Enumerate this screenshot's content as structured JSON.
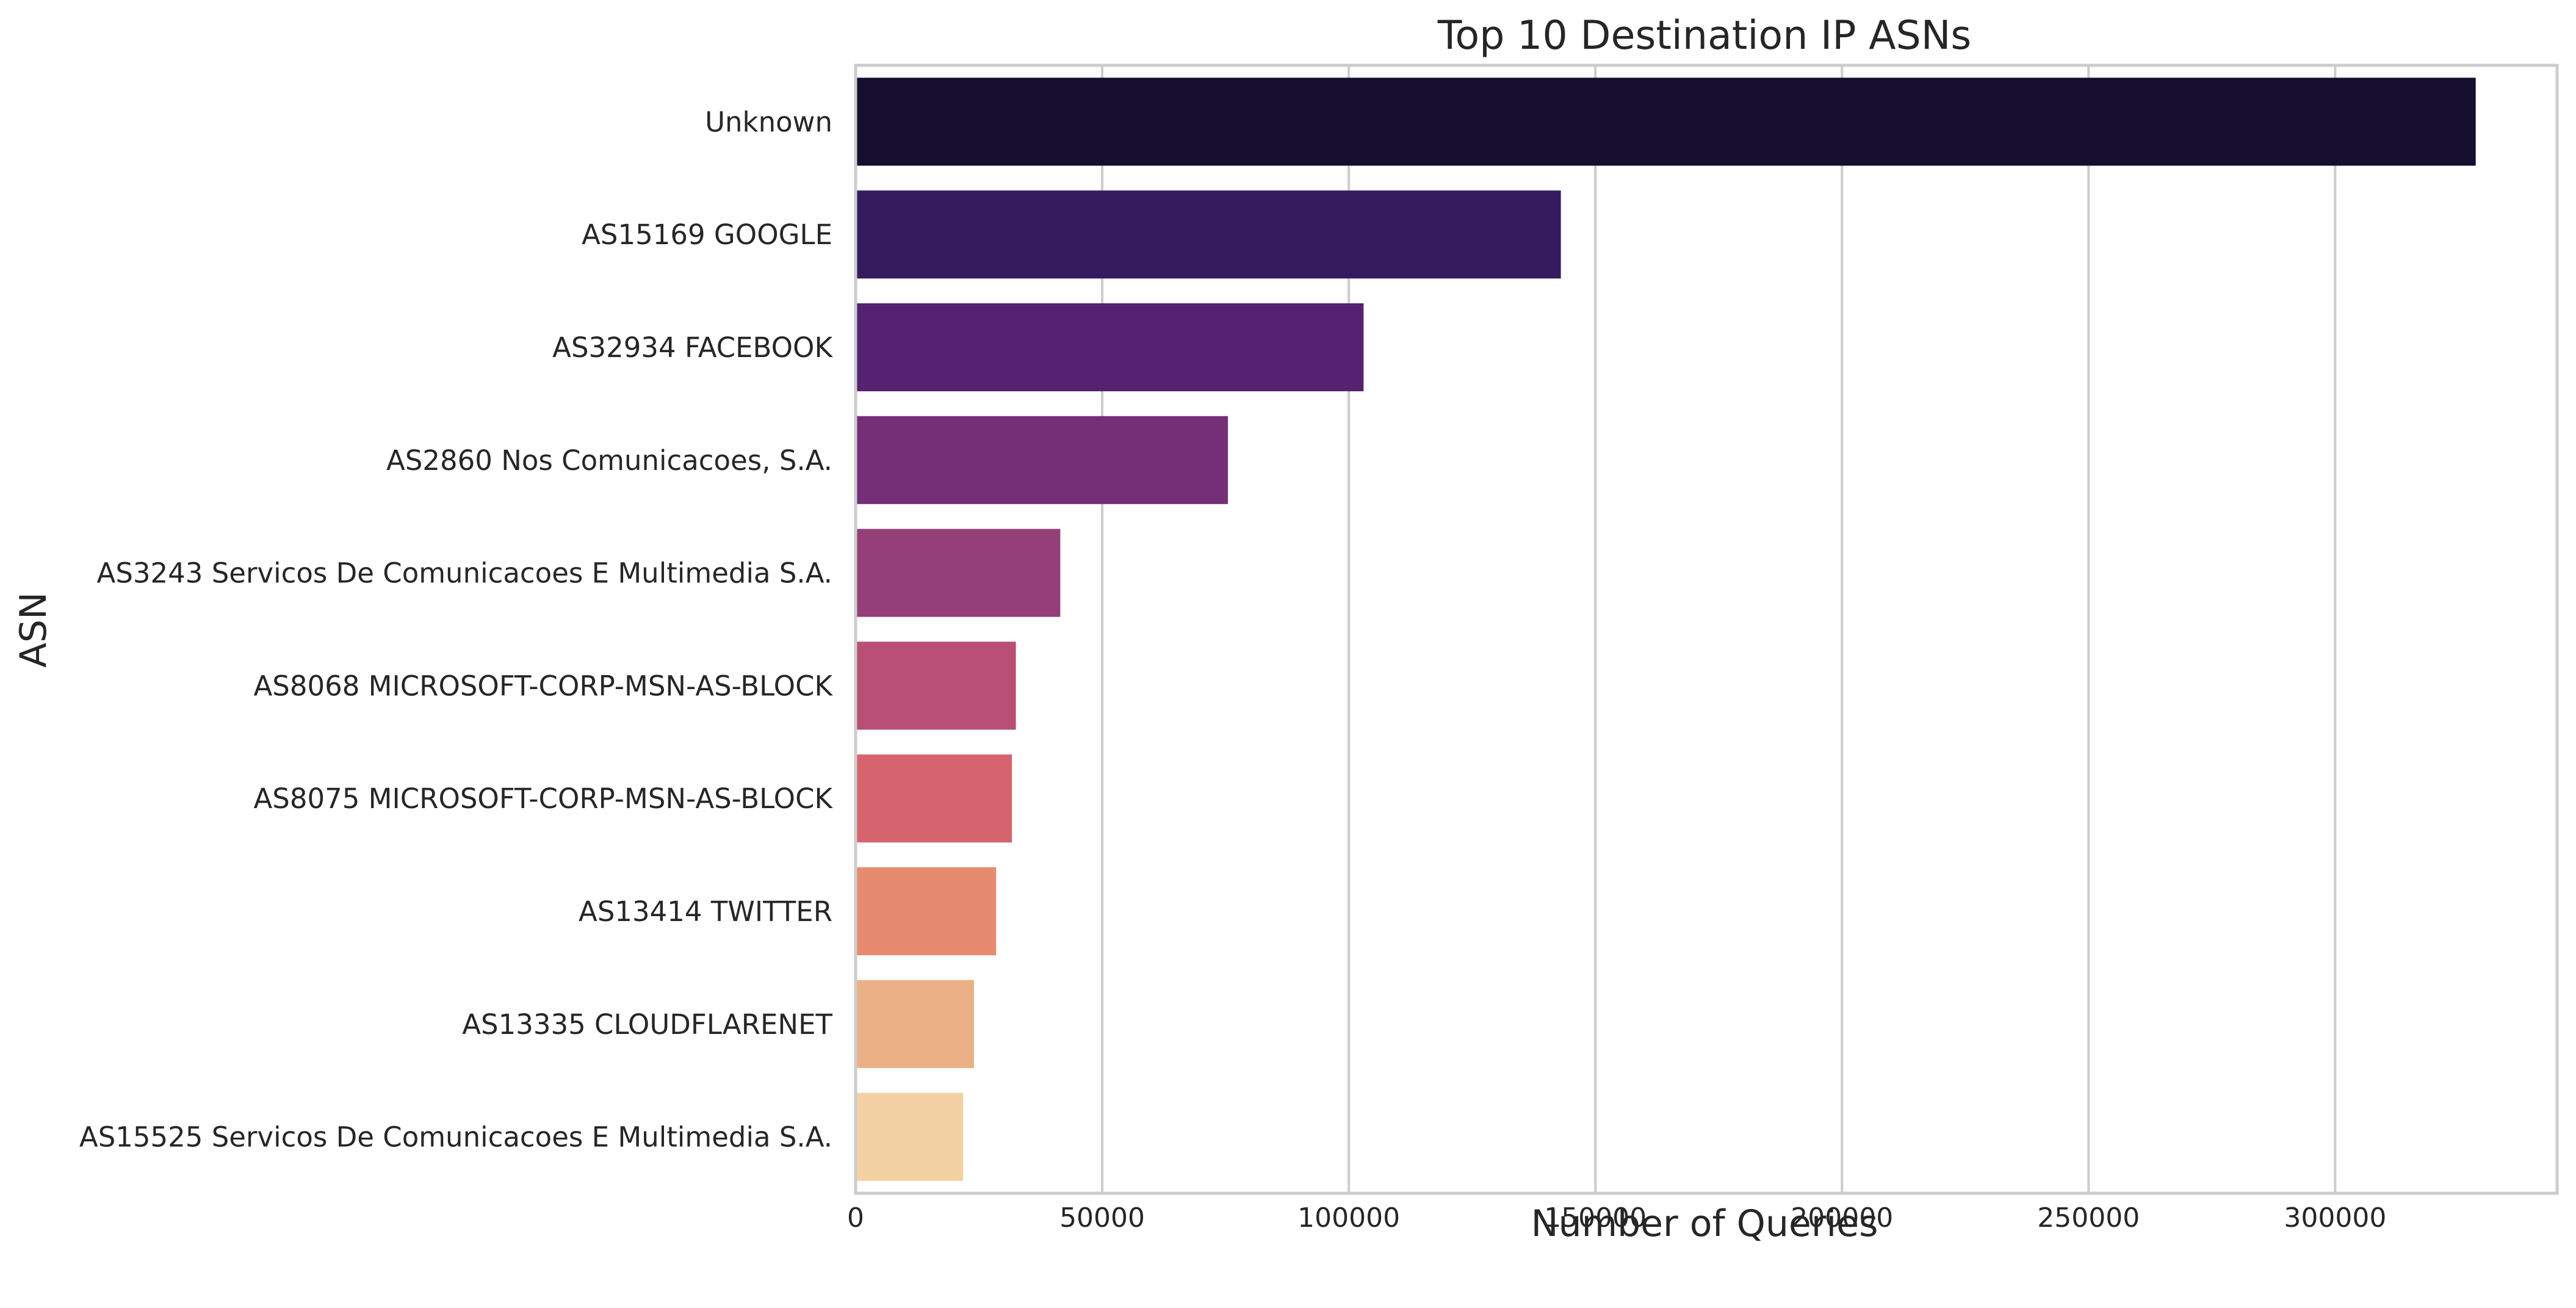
{
  "chart_data": {
    "type": "bar",
    "orientation": "horizontal",
    "title": "Top 10 Destination IP ASNs",
    "xlabel": "Number of Queries",
    "ylabel": "ASN",
    "xlim": [
      0,
      345000
    ],
    "xticks": [
      0,
      50000,
      100000,
      150000,
      200000,
      250000,
      300000
    ],
    "grid": "vertical",
    "legend": "none",
    "categories": [
      "Unknown",
      "AS15169 GOOGLE",
      "AS32934 FACEBOOK",
      "AS2860 Nos Comunicacoes, S.A.",
      "AS3243 Servicos De Comunicacoes E Multimedia S.A.",
      "AS8068 MICROSOFT-CORP-MSN-AS-BLOCK",
      "AS8075 MICROSOFT-CORP-MSN-AS-BLOCK",
      "AS13414 TWITTER",
      "AS13335 CLOUDFLARENET",
      "AS15525 Servicos De Comunicacoes E Multimedia S.A."
    ],
    "values": [
      328500,
      143000,
      103000,
      75500,
      41500,
      32500,
      31700,
      28500,
      24000,
      21800
    ],
    "colors": [
      "#150e2f",
      "#351b5e",
      "#552170",
      "#742f77",
      "#943e7a",
      "#b94f74",
      "#d6646f",
      "#e78b70",
      "#ecb086",
      "#f3d1a2"
    ]
  }
}
